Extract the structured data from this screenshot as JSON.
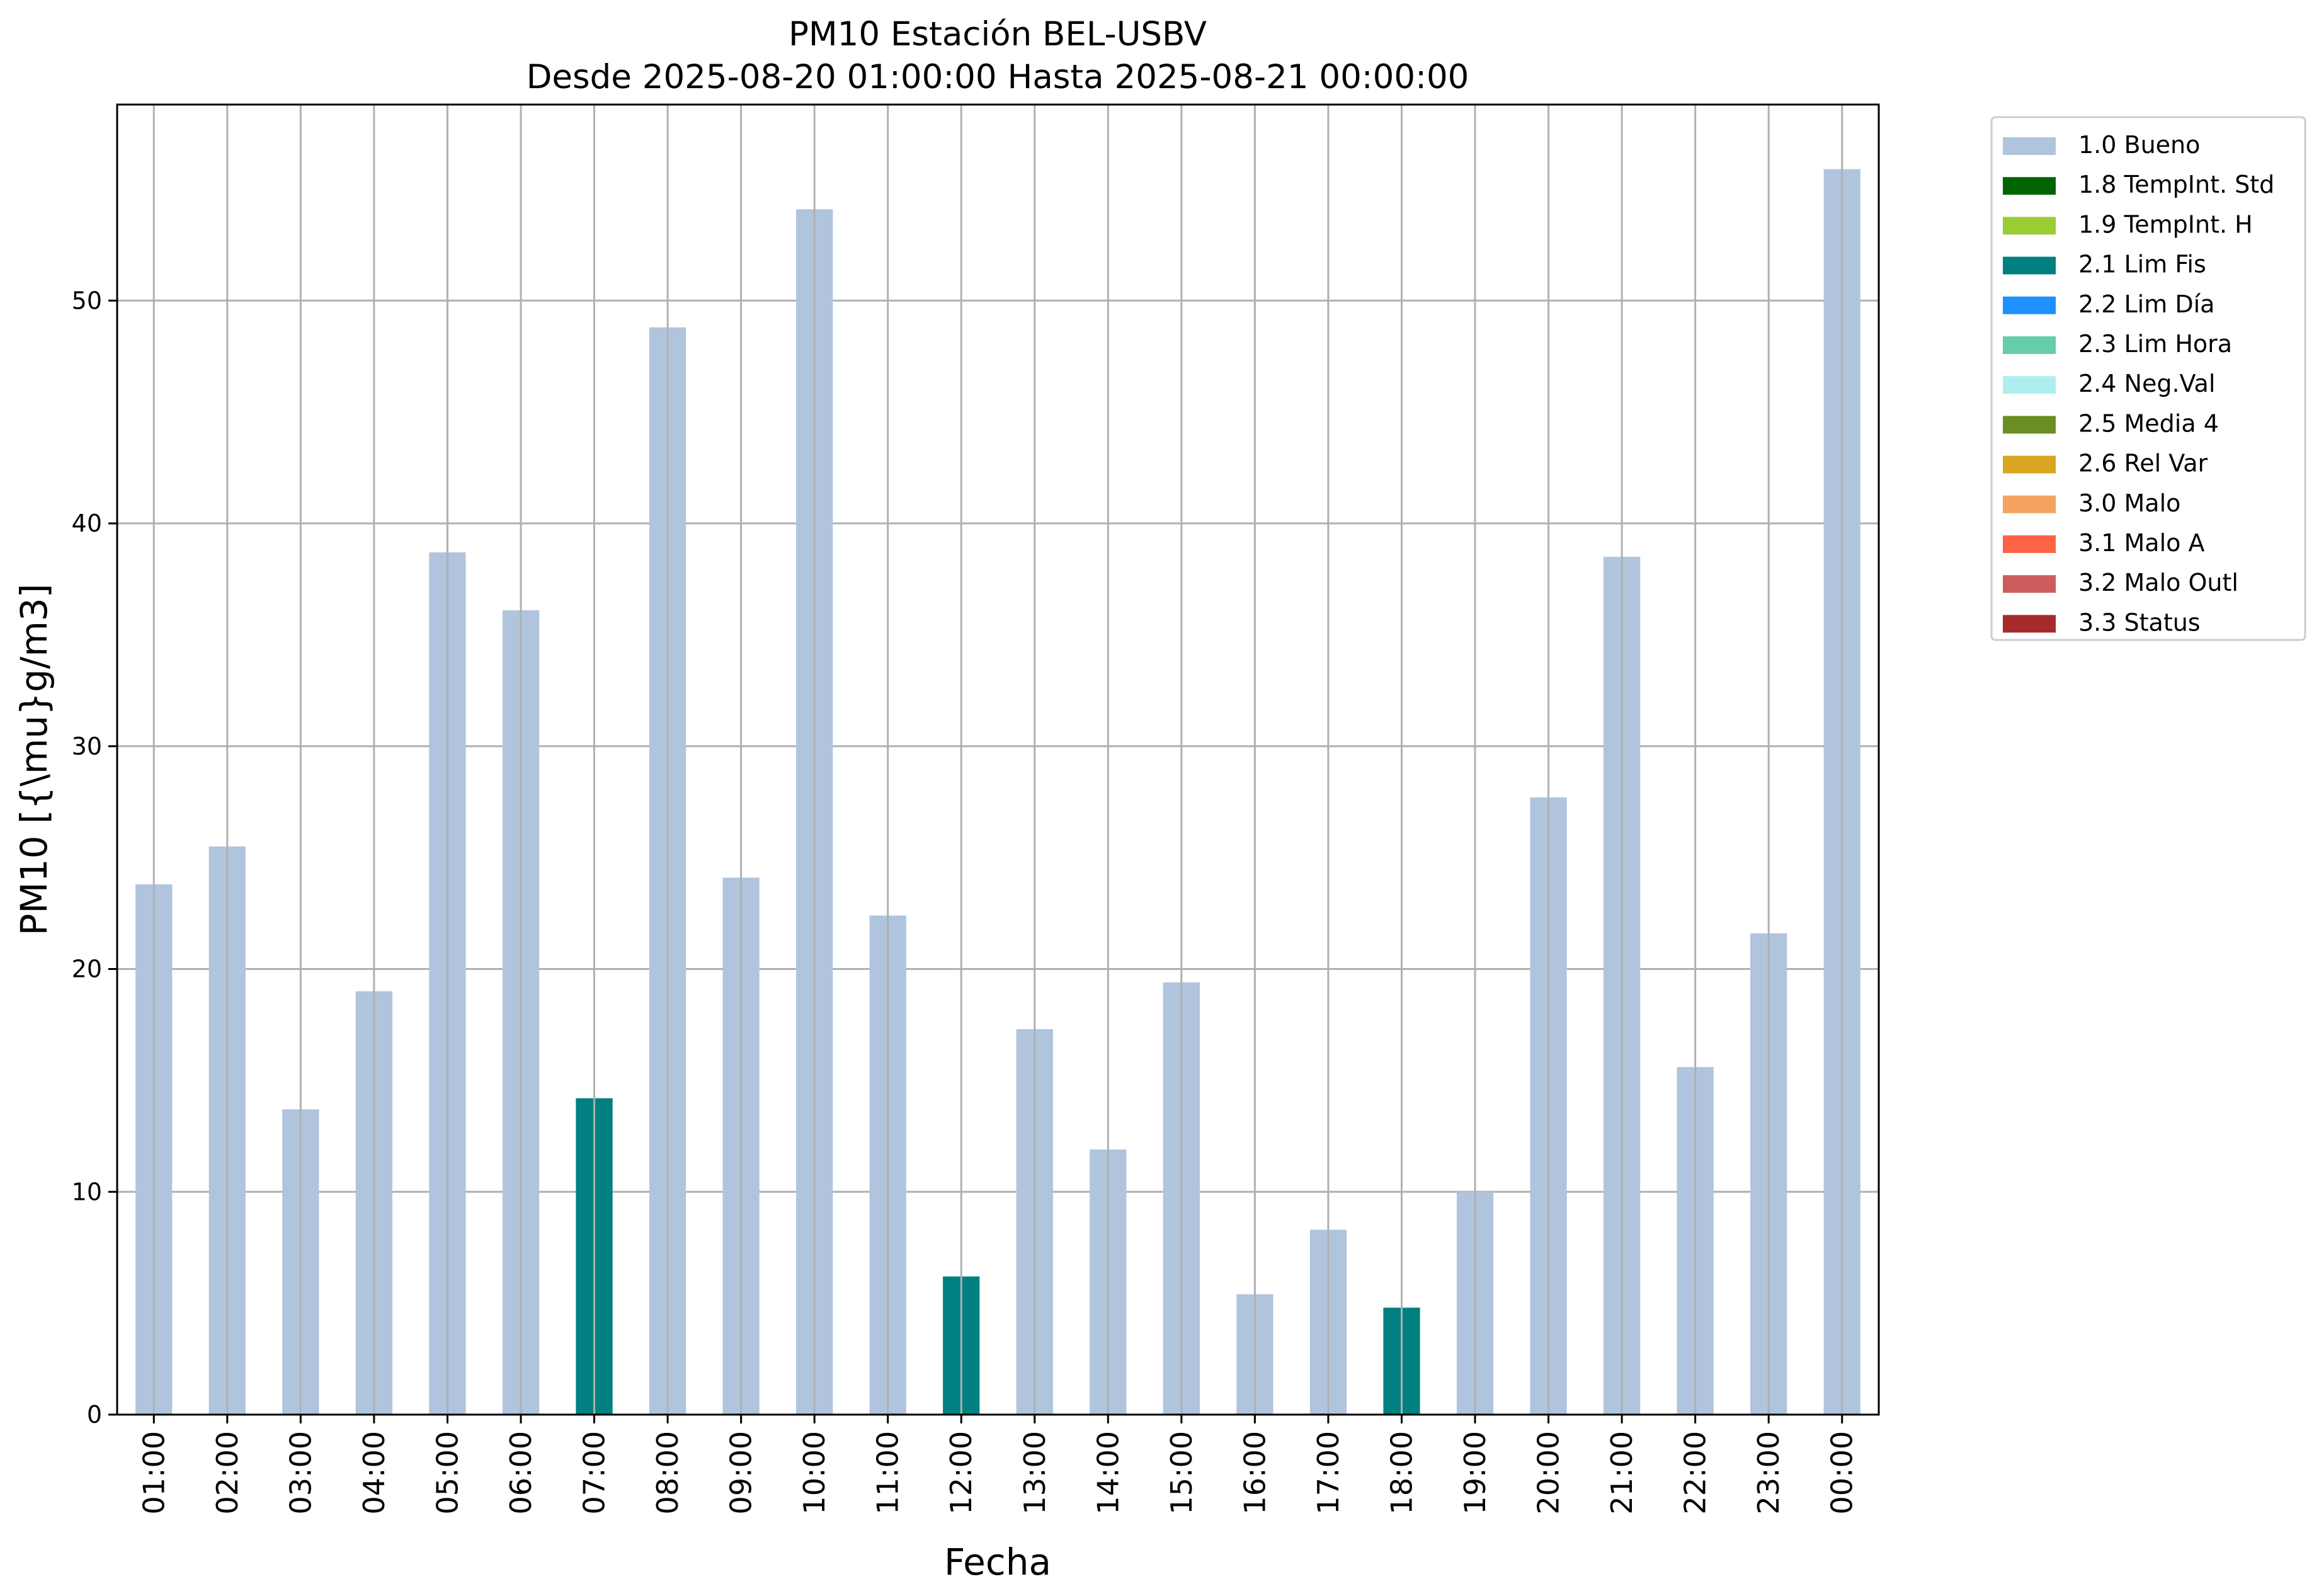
{
  "chart_data": {
    "type": "bar",
    "title": "PM10 Estación BEL-USBV",
    "subtitle": "Desde 2025-08-20 01:00:00 Hasta 2025-08-21 00:00:00",
    "xlabel": "Fecha",
    "ylabel": "PM10 [{\\mu}g/m3]",
    "categories": [
      "01:00",
      "02:00",
      "03:00",
      "04:00",
      "05:00",
      "06:00",
      "07:00",
      "08:00",
      "09:00",
      "10:00",
      "11:00",
      "12:00",
      "13:00",
      "14:00",
      "15:00",
      "16:00",
      "17:00",
      "18:00",
      "19:00",
      "20:00",
      "21:00",
      "22:00",
      "23:00",
      "00:00"
    ],
    "values": [
      23.8,
      25.5,
      13.7,
      19.0,
      38.7,
      36.1,
      14.2,
      48.8,
      24.1,
      54.1,
      22.4,
      6.2,
      17.3,
      11.9,
      19.4,
      5.4,
      8.3,
      4.8,
      10.0,
      27.7,
      38.5,
      15.6,
      21.6,
      55.9
    ],
    "flags": [
      "1.0",
      "1.0",
      "1.0",
      "1.0",
      "1.0",
      "1.0",
      "2.1",
      "1.0",
      "1.0",
      "1.0",
      "1.0",
      "2.1",
      "1.0",
      "1.0",
      "1.0",
      "1.0",
      "1.0",
      "2.1",
      "1.0",
      "1.0",
      "1.0",
      "1.0",
      "1.0",
      "1.0"
    ],
    "ylim": [
      0,
      58.8
    ],
    "yticks": [
      0,
      10,
      20,
      30,
      40,
      50
    ],
    "grid": true,
    "legend_position": "outside-top-right",
    "legend": [
      {
        "code": "1.0",
        "label": "1.0 Bueno",
        "color": "#b0c4de"
      },
      {
        "code": "1.8",
        "label": "1.8 TempInt. Std",
        "color": "#006400"
      },
      {
        "code": "1.9",
        "label": "1.9 TempInt. H",
        "color": "#9acd32"
      },
      {
        "code": "2.1",
        "label": "2.1 Lim Fis",
        "color": "#008080"
      },
      {
        "code": "2.2",
        "label": "2.2 Lim Día",
        "color": "#1e90ff"
      },
      {
        "code": "2.3",
        "label": "2.3 Lim Hora",
        "color": "#66cdaa"
      },
      {
        "code": "2.4",
        "label": "2.4 Neg.Val",
        "color": "#afeeee"
      },
      {
        "code": "2.5",
        "label": "2.5 Media 4",
        "color": "#6b8e23"
      },
      {
        "code": "2.6",
        "label": "2.6 Rel Var",
        "color": "#daa520"
      },
      {
        "code": "3.0",
        "label": "3.0 Malo",
        "color": "#f4a460"
      },
      {
        "code": "3.1",
        "label": "3.1 Malo A",
        "color": "#ff6347"
      },
      {
        "code": "3.2",
        "label": "3.2 Malo Outl",
        "color": "#cd5c5c"
      },
      {
        "code": "3.3",
        "label": "3.3 Status",
        "color": "#a52a2a"
      }
    ]
  }
}
